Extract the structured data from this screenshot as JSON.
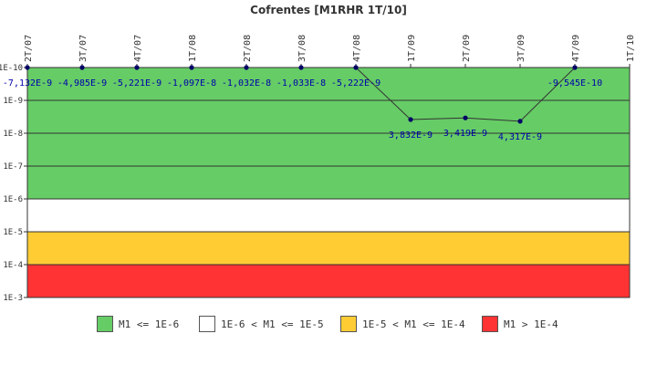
{
  "chart_data": {
    "type": "line",
    "title": "Cofrentes [M1RHR 1T/10]",
    "categories": [
      "2T/07",
      "3T/07",
      "4T/07",
      "1T/08",
      "2T/08",
      "3T/08",
      "4T/08",
      "1T/09",
      "2T/09",
      "3T/09",
      "4T/09",
      "1T/10"
    ],
    "y_axis": {
      "scale": "log",
      "inverted": true,
      "ticks": [
        "1E-10",
        "1E-9",
        "1E-8",
        "1E-7",
        "1E-6",
        "1E-5",
        "1E-4",
        "1E-3"
      ],
      "range": [
        1e-10,
        0.001
      ]
    },
    "series": [
      {
        "values": [
          -7.132e-09,
          -4.985e-09,
          -5.221e-09,
          -1.097e-08,
          -1.032e-08,
          -1.033e-08,
          -5.222e-09,
          3.832e-09,
          3.419e-09,
          4.317e-09,
          -9.545e-10,
          null
        ],
        "labels": [
          "-7,132E-9",
          "-4,985E-9",
          "-5,221E-9",
          "-1,097E-8",
          "-1,032E-8",
          "-1,033E-8",
          "-5,222E-9",
          "3,832E-9",
          "3,419E-9",
          "4,317E-9",
          "-9,545E-10",
          ""
        ],
        "color": "#000066"
      }
    ],
    "bands": [
      {
        "label": "M1 <= 1E-6",
        "from": 1e-10,
        "to": 1e-06,
        "color": "#66cc66"
      },
      {
        "label": "1E-6 < M1 <= 1E-5",
        "from": 1e-06,
        "to": 1e-05,
        "color": "#ffffff"
      },
      {
        "label": "1E-5 < M1 <= 1E-4",
        "from": 1e-05,
        "to": 0.0001,
        "color": "#ffcc33"
      },
      {
        "label": "M1 > 1E-4",
        "from": 0.0001,
        "to": 0.001,
        "color": "#ff3333"
      }
    ],
    "legend_position": "bottom"
  }
}
